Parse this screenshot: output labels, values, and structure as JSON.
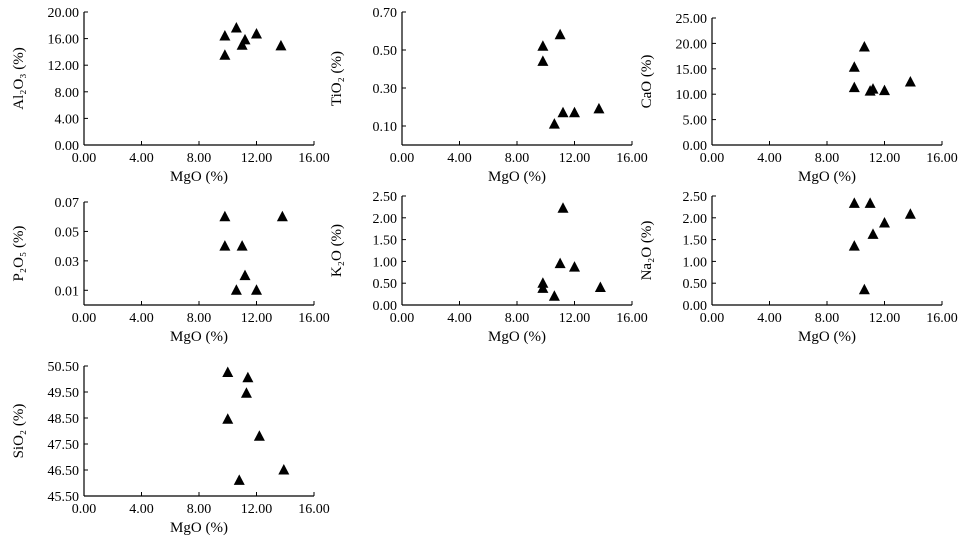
{
  "chart_data": [
    {
      "type": "scatter",
      "xlabel": "MgO (%)",
      "ylabel": "Al₂O₃ (%)",
      "xlim": [
        0,
        16
      ],
      "ylim": [
        0,
        20
      ],
      "xticks": [
        "0.00",
        "4.00",
        "8.00",
        "12.00",
        "16.00"
      ],
      "yticks": [
        "0.00",
        "4.00",
        "8.00",
        "12.00",
        "16.00",
        "20.00"
      ],
      "series": [
        {
          "marker": "triangle",
          "x": [
            9.8,
            9.8,
            10.6,
            11.0,
            11.2,
            12.0,
            13.7
          ],
          "y": [
            13.5,
            16.4,
            17.6,
            15.0,
            15.8,
            16.7,
            14.9
          ]
        }
      ]
    },
    {
      "type": "scatter",
      "xlabel": "MgO (%)",
      "ylabel": "TiO₂ (%)",
      "xlim": [
        0,
        16
      ],
      "ylim": [
        0,
        0.7
      ],
      "xticks": [
        "0.00",
        "4.00",
        "8.00",
        "12.00",
        "16.00"
      ],
      "yticks": [
        "0.10",
        "0.30",
        "0.50",
        "0.70"
      ],
      "yticks_values": [
        0.1,
        0.3,
        0.5,
        0.7
      ],
      "series": [
        {
          "marker": "triangle",
          "x": [
            9.8,
            9.8,
            10.6,
            11.0,
            11.2,
            12.0,
            13.7
          ],
          "y": [
            0.44,
            0.52,
            0.11,
            0.58,
            0.17,
            0.17,
            0.19
          ]
        }
      ]
    },
    {
      "type": "scatter",
      "xlabel": "MgO (%)",
      "ylabel": "CaO (%)",
      "xlim": [
        0,
        16
      ],
      "ylim": [
        0,
        25
      ],
      "xticks": [
        "0.00",
        "4.00",
        "8.00",
        "12.00",
        "16.00"
      ],
      "yticks": [
        "0.00",
        "5.00",
        "10.00",
        "15.00",
        "20.00",
        "25.00"
      ],
      "series": [
        {
          "marker": "triangle",
          "x": [
            9.9,
            9.9,
            10.6,
            11.0,
            11.2,
            12.0,
            13.8
          ],
          "y": [
            15.3,
            11.3,
            19.3,
            10.6,
            11.0,
            10.7,
            12.4
          ]
        }
      ]
    },
    {
      "type": "scatter",
      "xlabel": "MgO (%)",
      "ylabel": "P₂O₅ (%)",
      "xlim": [
        0,
        16
      ],
      "ylim": [
        0,
        0.07
      ],
      "xticks": [
        "0.00",
        "4.00",
        "8.00",
        "12.00",
        "16.00"
      ],
      "yticks": [
        "0.01",
        "0.03",
        "0.05",
        "0.07"
      ],
      "yticks_values": [
        0.01,
        0.03,
        0.05,
        0.07
      ],
      "series": [
        {
          "marker": "triangle",
          "x": [
            9.8,
            9.8,
            10.6,
            11.0,
            11.2,
            12.0,
            13.8
          ],
          "y": [
            0.06,
            0.04,
            0.01,
            0.04,
            0.02,
            0.01,
            0.06
          ]
        }
      ]
    },
    {
      "type": "scatter",
      "xlabel": "MgO (%)",
      "ylabel": "K₂O (%)",
      "xlim": [
        0,
        16
      ],
      "ylim": [
        0,
        2.5
      ],
      "xticks": [
        "0.00",
        "4.00",
        "8.00",
        "12.00",
        "16.00"
      ],
      "yticks": [
        "0.00",
        "0.50",
        "1.00",
        "1.50",
        "2.00",
        "2.50"
      ],
      "series": [
        {
          "marker": "triangle",
          "x": [
            9.8,
            9.8,
            10.6,
            11.0,
            11.2,
            12.0,
            13.8
          ],
          "y": [
            0.38,
            0.5,
            0.2,
            0.95,
            2.22,
            0.87,
            0.4
          ]
        }
      ]
    },
    {
      "type": "scatter",
      "xlabel": "MgO (%)",
      "ylabel": "Na₂O (%)",
      "xlim": [
        0,
        16
      ],
      "ylim": [
        0,
        2.5
      ],
      "xticks": [
        "0.00",
        "4.00",
        "8.00",
        "12.00",
        "16.00"
      ],
      "yticks": [
        "0.00",
        "0.50",
        "1.00",
        "1.50",
        "2.00",
        "2.50"
      ],
      "series": [
        {
          "marker": "triangle",
          "x": [
            9.9,
            9.9,
            10.6,
            11.0,
            11.2,
            12.0,
            13.8
          ],
          "y": [
            2.33,
            1.35,
            0.35,
            2.33,
            1.62,
            1.88,
            2.08
          ]
        }
      ]
    },
    {
      "type": "scatter",
      "xlabel": "MgO (%)",
      "ylabel": "SiO₂ (%)",
      "xlim": [
        0,
        16
      ],
      "ylim": [
        45.5,
        50.5
      ],
      "xticks": [
        "0.00",
        "4.00",
        "8.00",
        "12.00",
        "16.00"
      ],
      "yticks": [
        "45.50",
        "46.50",
        "47.50",
        "48.50",
        "49.50",
        "50.50"
      ],
      "series": [
        {
          "marker": "triangle",
          "x": [
            10.0,
            10.0,
            10.8,
            11.3,
            11.4,
            12.2,
            13.9
          ],
          "y": [
            50.25,
            48.45,
            46.1,
            49.45,
            50.05,
            47.8,
            46.5
          ]
        }
      ]
    }
  ]
}
